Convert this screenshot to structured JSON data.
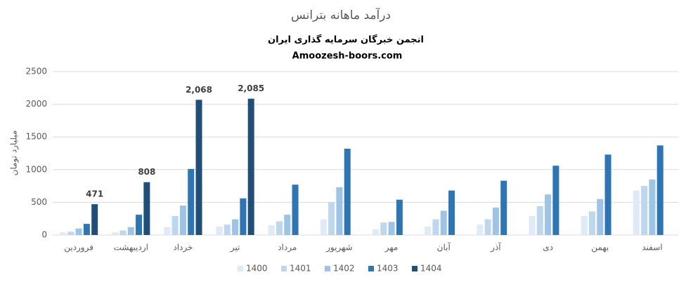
{
  "chart_data": {
    "type": "bar",
    "title": "درآمد ماهانه بترانس",
    "subtitle": "انجمن خبرگان سرمایه گذاری ایران",
    "source": "Amoozesh-boors.com",
    "y_label": "میلیارد تومان",
    "categories": [
      "فروردین",
      "اردیبهشت",
      "خرداد",
      "تیر",
      "مرداد",
      "شهریور",
      "مهر",
      "آبان",
      "آذر",
      "دی",
      "بهمن",
      "اسفند"
    ],
    "series": [
      {
        "name": "1400",
        "color": "#deebf7",
        "values": [
          40,
          40,
          120,
          130,
          150,
          240,
          90,
          130,
          160,
          290,
          290,
          680
        ]
      },
      {
        "name": "1401",
        "color": "#bdd7ee",
        "values": [
          50,
          70,
          290,
          160,
          210,
          500,
          190,
          240,
          240,
          440,
          360,
          750
        ]
      },
      {
        "name": "1402",
        "color": "#9dc3e6",
        "values": [
          100,
          120,
          450,
          240,
          310,
          730,
          200,
          370,
          420,
          620,
          550,
          850
        ]
      },
      {
        "name": "1403",
        "color": "#2e75b6",
        "values": [
          170,
          310,
          1010,
          560,
          770,
          1320,
          540,
          680,
          830,
          1060,
          1230,
          1370
        ]
      },
      {
        "name": "1404",
        "color": "#1f4e79",
        "values": [
          471,
          808,
          2068,
          2085,
          null,
          null,
          null,
          null,
          null,
          null,
          null,
          null
        ],
        "value_labels": [
          "471",
          "808",
          "2,068",
          "2,085",
          null,
          null,
          null,
          null,
          null,
          null,
          null,
          null
        ]
      }
    ],
    "ylim": [
      0,
      2500
    ],
    "yticks": [
      0,
      500,
      1000,
      1500,
      2000,
      2500
    ],
    "grid": true,
    "legend": "bottom"
  }
}
